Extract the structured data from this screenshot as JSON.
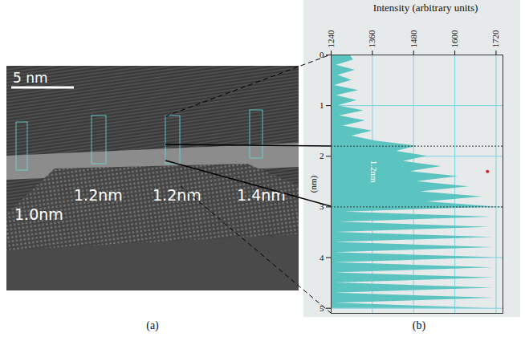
{
  "image": {
    "scale_bar": "5 nm",
    "labels": [
      "1.0nm",
      "1.2nm",
      "1.2nm",
      "1.4nm"
    ],
    "caption": "(a)"
  },
  "chart_data": {
    "type": "area",
    "orientation": "horizontal",
    "caption": "(b)",
    "x_label": "Intensity (arbitrary units)",
    "y_label": "(nm)",
    "xlim": [
      1240,
      1740
    ],
    "xticks": [
      1240,
      1360,
      1480,
      1600,
      1720
    ],
    "ylim": [
      0,
      5.1
    ],
    "yticks": [
      0,
      1,
      2,
      3,
      4,
      5
    ],
    "grid": true,
    "color": "#5cc4c0",
    "y": [
      0.0,
      0.1,
      0.2,
      0.3,
      0.4,
      0.5,
      0.6,
      0.7,
      0.8,
      0.9,
      1.0,
      1.1,
      1.2,
      1.3,
      1.4,
      1.5,
      1.6,
      1.7,
      1.8,
      1.9,
      2.0,
      2.1,
      2.2,
      2.3,
      2.4,
      2.5,
      2.6,
      2.7,
      2.8,
      2.9,
      3.0,
      3.1,
      3.2,
      3.3,
      3.4,
      3.5,
      3.6,
      3.7,
      3.8,
      3.9,
      4.0,
      4.1,
      4.2,
      4.3,
      4.4,
      4.5,
      4.6,
      4.7,
      4.8,
      4.9,
      5.0
    ],
    "values": [
      1295,
      1305,
      1255,
      1310,
      1260,
      1300,
      1250,
      1320,
      1255,
      1315,
      1260,
      1335,
      1265,
      1340,
      1275,
      1360,
      1300,
      1370,
      1490,
      1430,
      1520,
      1450,
      1560,
      1470,
      1610,
      1490,
      1640,
      1500,
      1680,
      1520,
      1720,
      1280,
      1705,
      1265,
      1700,
      1255,
      1710,
      1250,
      1710,
      1250,
      1715,
      1250,
      1710,
      1250,
      1715,
      1255,
      1710,
      1250,
      1715,
      1255,
      1690
    ],
    "marker_lines": [
      1.8,
      3.0
    ],
    "cursor": {
      "x": 1695,
      "y": 2.3
    },
    "annotations": [
      {
        "text": "1.2nm",
        "x": 1365,
        "y": 2.3
      }
    ]
  }
}
